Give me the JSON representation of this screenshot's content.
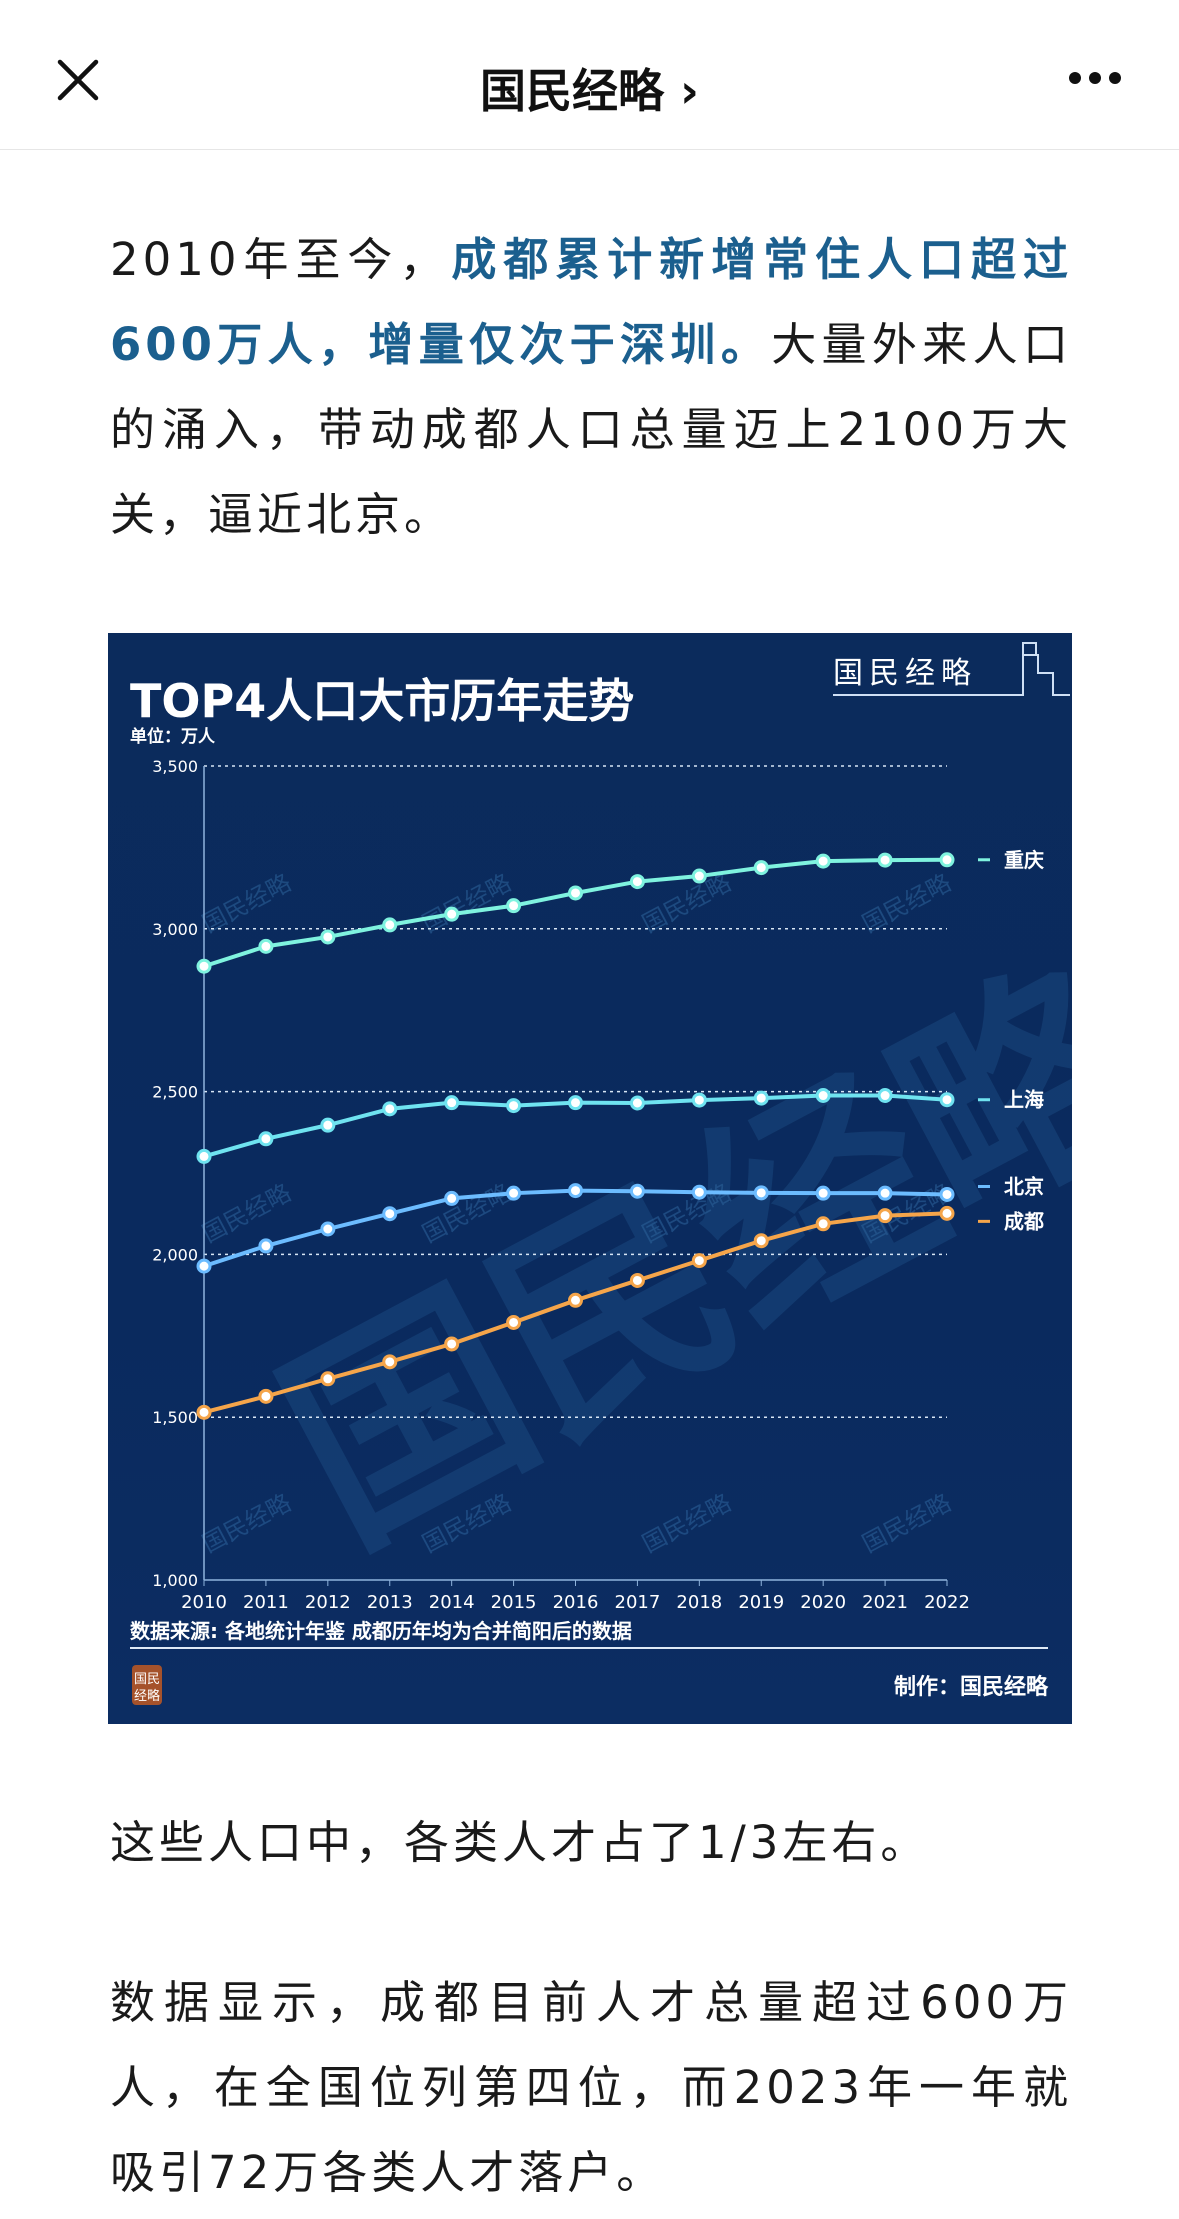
{
  "header": {
    "title": "国民经略",
    "chevron": "›",
    "close_icon": "close-icon",
    "more_icon": "more-icon"
  },
  "article": {
    "p1": [
      {
        "text": "2010年至今，",
        "highlight": false
      },
      {
        "text": "成都累计新增常住人口超过600万人，增量仅次于深圳。",
        "highlight": true
      },
      {
        "text": "大量外来人口的涌入，带动成都人口总量迈上2100万大关，逼近北京。",
        "highlight": false
      }
    ],
    "p2": "这些人口中，各类人才占了1/3左右。",
    "p3": "数据显示，成都目前人才总量超过600万人，在全国位列第四位，而2023年一年就吸引72万各类人才落户。"
  },
  "colors": {
    "highlight": "#1b5f8e",
    "chart_bg": "#0b2b5c"
  },
  "chart_data": {
    "type": "line",
    "title": "TOP4人口大市历年走势",
    "unit_label": "单位：万人",
    "logo": "国民经略",
    "watermark": "国民经略",
    "stamp": "国民经略",
    "source": "数据来源: 各地统计年鉴 成都历年均为合并简阳后的数据",
    "credit": "制作：国民经略",
    "x": [
      2010,
      2011,
      2012,
      2013,
      2014,
      2015,
      2016,
      2017,
      2018,
      2019,
      2020,
      2021,
      2022
    ],
    "ylim": [
      1000,
      3500
    ],
    "yticks": [
      1000,
      1500,
      2000,
      2500,
      3000,
      3500
    ],
    "ytick_labels": [
      "1,000",
      "1,500",
      "2,000",
      "2,500",
      "3,000",
      "3,500"
    ],
    "grid": "horizontal-dotted",
    "legend": "right-end-labels",
    "series": [
      {
        "name": "重庆",
        "color": "#7ff3df",
        "values": [
          2885,
          2946,
          2975,
          3012,
          3045,
          3071,
          3110,
          3145,
          3162,
          3188,
          3208,
          3211,
          3212
        ]
      },
      {
        "name": "上海",
        "color": "#6fe3f0",
        "values": [
          2301,
          2355,
          2397,
          2447,
          2466,
          2457,
          2466,
          2465,
          2474,
          2480,
          2488,
          2488,
          2475
        ]
      },
      {
        "name": "北京",
        "color": "#6cbcff",
        "values": [
          1964,
          2026,
          2078,
          2125,
          2172,
          2188,
          2196,
          2194,
          2191,
          2189,
          2188,
          2188,
          2184
        ]
      },
      {
        "name": "成都",
        "color": "#f5a54a",
        "values": [
          1515,
          1564,
          1618,
          1670,
          1725,
          1791,
          1859,
          1920,
          1981,
          2042,
          2094,
          2119,
          2126
        ]
      }
    ]
  }
}
